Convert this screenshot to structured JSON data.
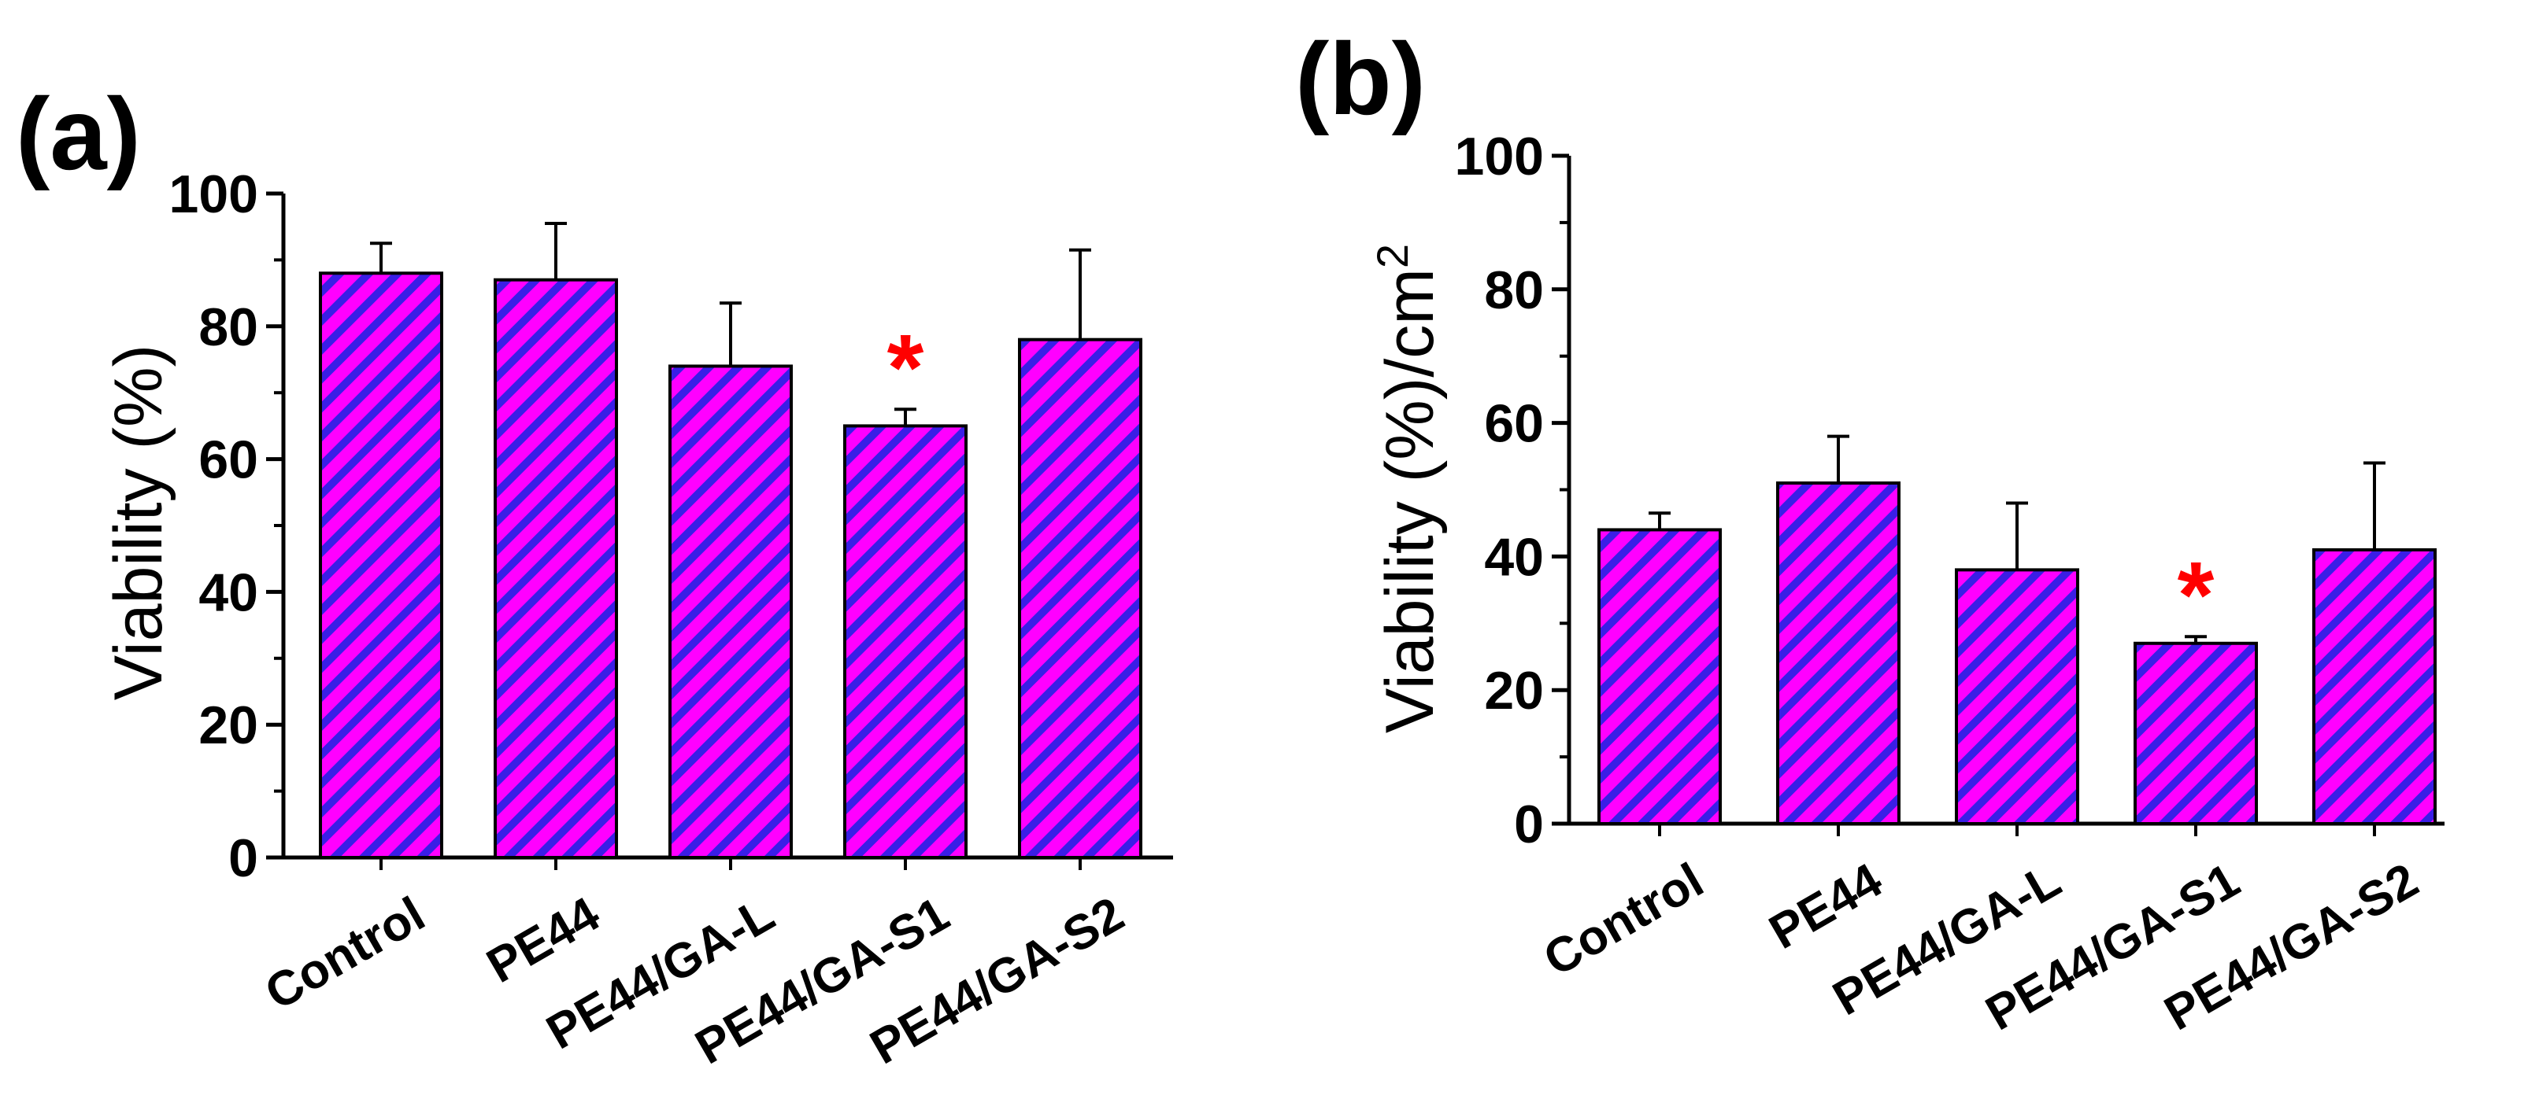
{
  "colors": {
    "bar_fill": "#ff00ff",
    "bar_hatch": "#3a1ee6",
    "star": "#ff0000",
    "axis": "#000000"
  },
  "chart_data": [
    {
      "panel": "(a)",
      "type": "bar",
      "categories": [
        "Control",
        "PE44",
        "PE44/GA-L",
        "PE44/GA-S1",
        "PE44/GA-S2"
      ],
      "values": [
        88,
        87,
        74,
        65,
        78
      ],
      "errors": [
        4.5,
        8.5,
        9.5,
        2.5,
        13.5
      ],
      "significant": [
        false,
        false,
        false,
        true,
        false
      ],
      "significance_marker": "*",
      "ylabel": "Viability (%)",
      "ylim": [
        0,
        100
      ],
      "yticks": [
        0,
        20,
        40,
        60,
        80,
        100
      ],
      "title": "",
      "xlabel": ""
    },
    {
      "panel": "(b)",
      "type": "bar",
      "categories": [
        "Control",
        "PE44",
        "PE44/GA-L",
        "PE44/GA-S1",
        "PE44/GA-S2"
      ],
      "values": [
        44,
        51,
        38,
        27,
        41
      ],
      "errors": [
        2.5,
        7,
        10,
        1,
        13
      ],
      "significant": [
        false,
        false,
        false,
        true,
        false
      ],
      "significance_marker": "*",
      "ylabel": "Viability (%)/cm",
      "ylabel_superscript": "2",
      "ylim": [
        0,
        100
      ],
      "yticks": [
        0,
        20,
        40,
        60,
        80,
        100
      ],
      "title": "",
      "xlabel": ""
    }
  ]
}
